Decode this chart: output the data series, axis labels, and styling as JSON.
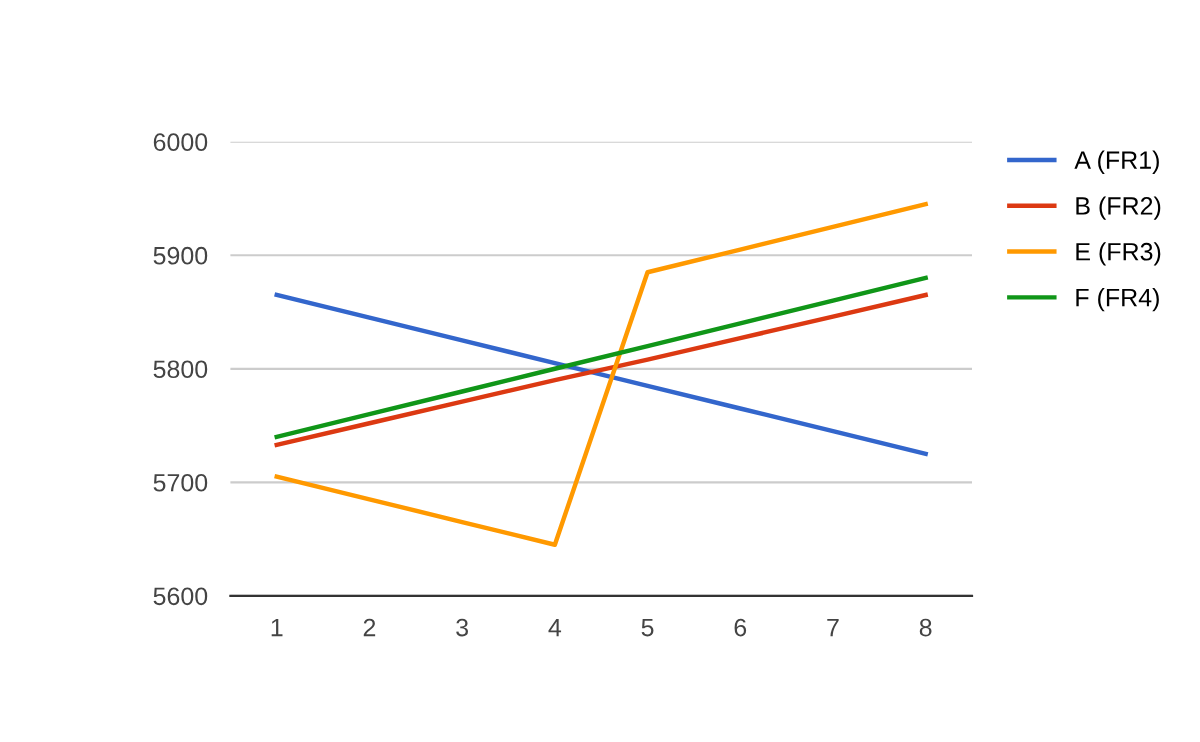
{
  "chart_data": {
    "type": "line",
    "categories": [
      "1",
      "2",
      "3",
      "4",
      "5",
      "6",
      "7",
      "8"
    ],
    "series": [
      {
        "name": "A (FR1)",
        "color": "#3366cc",
        "values": [
          5865,
          5845,
          5825,
          5805,
          5785,
          5765,
          5745,
          5725
        ]
      },
      {
        "name": "B (FR2)",
        "color": "#dc3912",
        "values": [
          5733,
          5752,
          5771,
          5790,
          5808,
          5827,
          5846,
          5865
        ]
      },
      {
        "name": "E (FR3)",
        "color": "#ff9900",
        "values": [
          5705,
          5685,
          5665,
          5645,
          5885,
          5905,
          5925,
          5945
        ]
      },
      {
        "name": "F (FR4)",
        "color": "#109618",
        "values": [
          5740,
          5760,
          5780,
          5800,
          5820,
          5840,
          5860,
          5880
        ]
      }
    ],
    "ylim": [
      5600,
      6000
    ],
    "yticks": [
      5600,
      5700,
      5800,
      5900,
      6000
    ],
    "grid": "y",
    "legend": "top right",
    "marker": "none",
    "line_style": "solid"
  }
}
